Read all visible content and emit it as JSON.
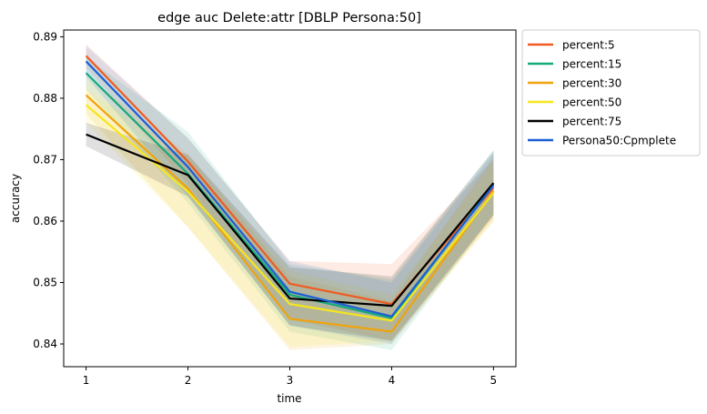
{
  "chart_data": {
    "type": "line",
    "title": "edge auc Delete:attr [DBLP Persona:50]",
    "xlabel": "time",
    "ylabel": "accuracy",
    "x": [
      1,
      2,
      3,
      4,
      5
    ],
    "xlim": [
      0.78,
      5.22
    ],
    "ylim": [
      0.8363,
      0.8911
    ],
    "xticks": [
      "1",
      "2",
      "3",
      "4",
      "5"
    ],
    "yticks": [
      "0.84",
      "0.85",
      "0.86",
      "0.87",
      "0.88",
      "0.89"
    ],
    "ytick_values": [
      0.84,
      0.85,
      0.86,
      0.87,
      0.88,
      0.89
    ],
    "grid": false,
    "legend_position": "outside-upper-right",
    "series": [
      {
        "name": "percent:5",
        "color": "#f05a22",
        "values": [
          0.8869,
          0.8697,
          0.8498,
          0.8465,
          0.8654
        ],
        "lower": [
          0.885,
          0.866,
          0.844,
          0.8405,
          0.8605
        ],
        "upper": [
          0.8888,
          0.8735,
          0.8535,
          0.853,
          0.87
        ]
      },
      {
        "name": "percent:15",
        "color": "#15a97a",
        "values": [
          0.8841,
          0.8677,
          0.848,
          0.8442,
          0.866
        ],
        "lower": [
          0.8815,
          0.863,
          0.842,
          0.839,
          0.861
        ],
        "upper": [
          0.8867,
          0.8745,
          0.853,
          0.8505,
          0.8715
        ]
      },
      {
        "name": "percent:30",
        "color": "#f0a30a",
        "values": [
          0.8805,
          0.8653,
          0.8441,
          0.842,
          0.8649
        ],
        "lower": [
          0.8775,
          0.859,
          0.839,
          0.84,
          0.86
        ],
        "upper": [
          0.8835,
          0.871,
          0.851,
          0.847,
          0.8705
        ]
      },
      {
        "name": "percent:50",
        "color": "#f5e61c",
        "values": [
          0.8789,
          0.8648,
          0.8465,
          0.8438,
          0.8646
        ],
        "lower": [
          0.876,
          0.859,
          0.8395,
          0.8405,
          0.86
        ],
        "upper": [
          0.8815,
          0.8705,
          0.852,
          0.848,
          0.8695
        ]
      },
      {
        "name": "percent:75",
        "color": "#000000",
        "values": [
          0.8741,
          0.8675,
          0.8474,
          0.8462,
          0.8662
        ],
        "lower": [
          0.8722,
          0.864,
          0.843,
          0.8405,
          0.861
        ],
        "upper": [
          0.876,
          0.8708,
          0.8525,
          0.851,
          0.8715
        ]
      },
      {
        "name": "Persona50:Cpmplete",
        "color": "#1a5fd6",
        "values": [
          0.886,
          0.8688,
          0.8485,
          0.8445,
          0.8658
        ],
        "lower": [
          0.8835,
          0.864,
          0.843,
          0.84,
          0.861
        ],
        "upper": [
          0.8885,
          0.8735,
          0.8535,
          0.85,
          0.871
        ]
      }
    ]
  }
}
